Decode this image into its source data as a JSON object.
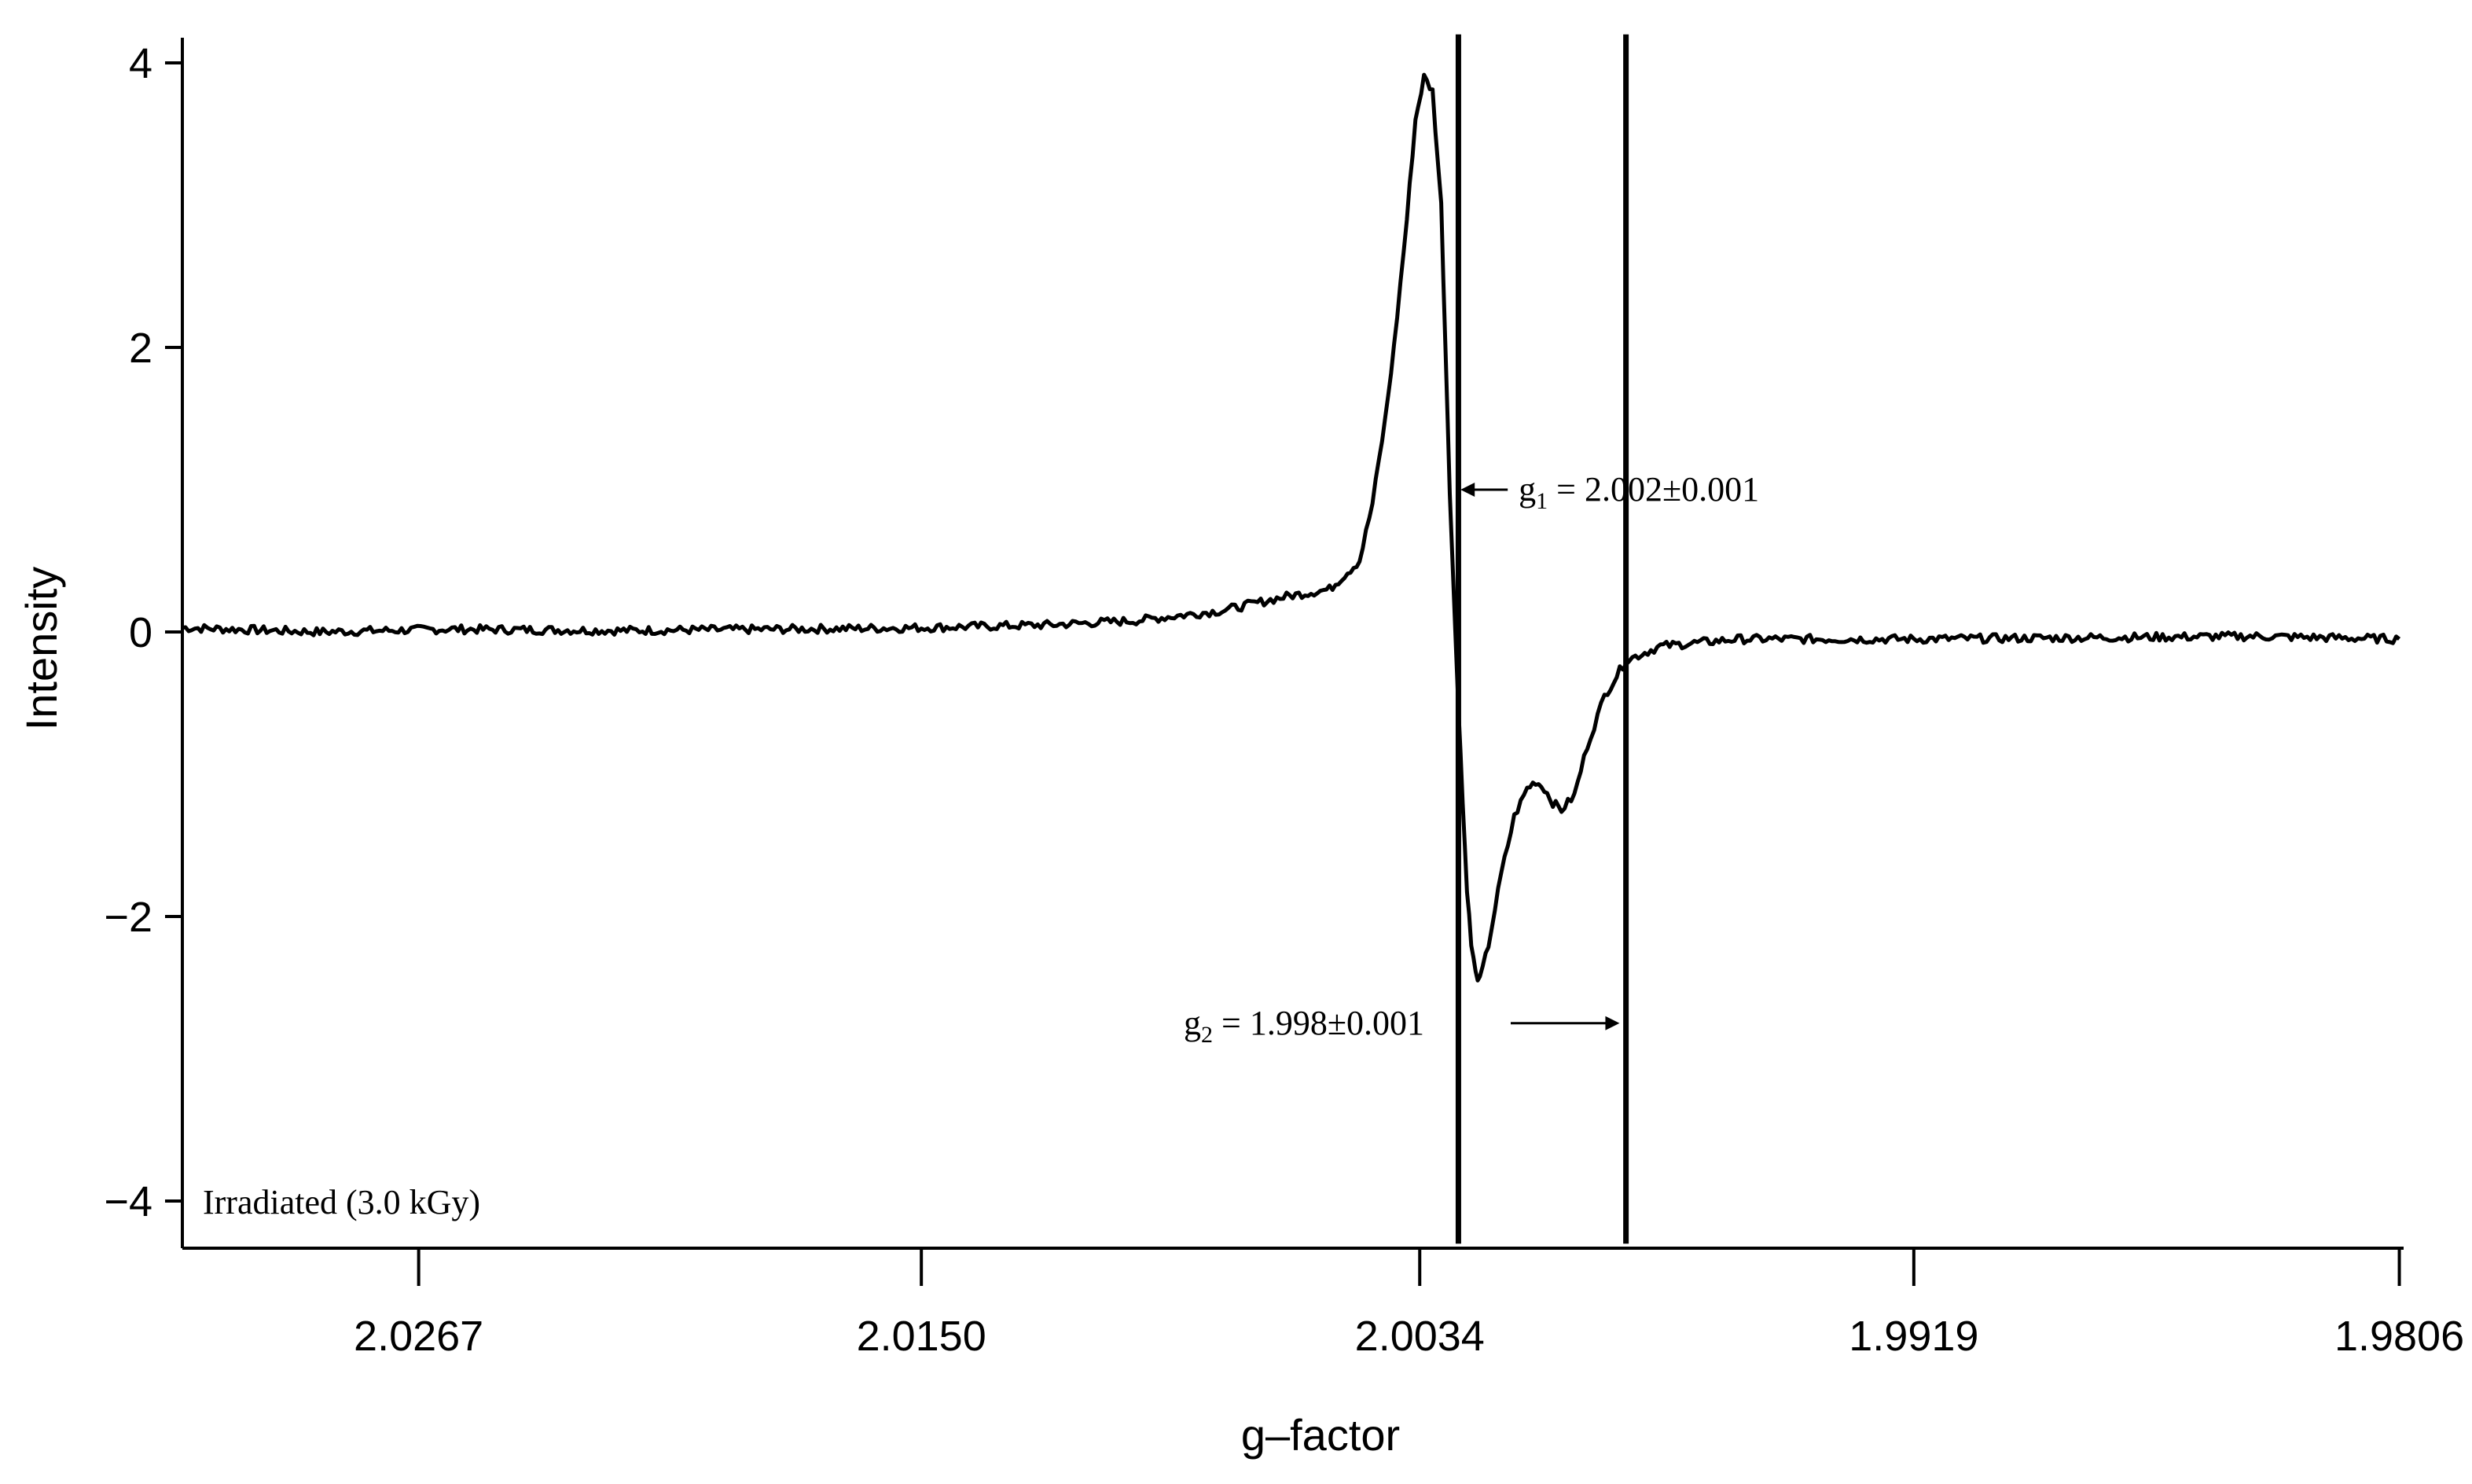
{
  "chart_data": {
    "type": "line",
    "xlabel": "g–factor",
    "ylabel": "Intensity",
    "x_axis": {
      "ticks": [
        2.0267,
        2.015,
        2.0034,
        1.9919,
        1.9806
      ],
      "tick_labels": [
        "2.0267",
        "2.0150",
        "2.0034",
        "1.9919",
        "1.9806"
      ],
      "range": [
        2.0322,
        1.9805
      ],
      "reversed": true
    },
    "y_axis": {
      "ticks": [
        -4,
        -2,
        0,
        2,
        4
      ],
      "tick_labels": [
        "−4",
        "−2",
        "0",
        "2",
        "4"
      ],
      "range": [
        -4.3,
        4.2
      ]
    },
    "grid": false,
    "legend": null,
    "series": [
      {
        "points": [
          [
            2.0322,
            0.03
          ],
          [
            2.029,
            0.0
          ],
          [
            2.026,
            0.02
          ],
          [
            2.022,
            0.01
          ],
          [
            2.018,
            0.02
          ],
          [
            2.015,
            0.03
          ],
          [
            2.012,
            0.05
          ],
          [
            2.01,
            0.08
          ],
          [
            2.008,
            0.15
          ],
          [
            2.0065,
            0.25
          ],
          [
            2.0055,
            0.3
          ],
          [
            2.0048,
            0.5
          ],
          [
            2.0045,
            0.9
          ],
          [
            2.0042,
            1.5
          ],
          [
            2.004,
            2.0
          ],
          [
            2.0037,
            2.9
          ],
          [
            2.0035,
            3.6
          ],
          [
            2.0033,
            3.9
          ],
          [
            2.0031,
            3.8
          ],
          [
            2.0029,
            3.0
          ],
          [
            2.0028,
            2.0
          ],
          [
            2.0027,
            1.0
          ],
          [
            2.0026,
            0.2
          ],
          [
            2.0025,
            -0.5
          ],
          [
            2.0024,
            -1.2
          ],
          [
            2.0023,
            -1.8
          ],
          [
            2.0022,
            -2.2
          ],
          [
            2.0021,
            -2.4
          ],
          [
            2.002,
            -2.45
          ],
          [
            2.0018,
            -2.2
          ],
          [
            2.0015,
            -1.7
          ],
          [
            2.0012,
            -1.3
          ],
          [
            2.0009,
            -1.1
          ],
          [
            2.0007,
            -1.05
          ],
          [
            2.0005,
            -1.1
          ],
          [
            2.0003,
            -1.2
          ],
          [
            2.0001,
            -1.25
          ],
          [
            1.9998,
            -1.15
          ],
          [
            1.9995,
            -0.8
          ],
          [
            1.9991,
            -0.45
          ],
          [
            1.9986,
            -0.2
          ],
          [
            1.9978,
            -0.1
          ],
          [
            1.996,
            -0.05
          ],
          [
            1.9919,
            -0.05
          ],
          [
            1.988,
            -0.04
          ],
          [
            1.984,
            -0.03
          ],
          [
            1.9806,
            -0.05
          ]
        ]
      }
    ],
    "spikes": [
      {
        "x": 2.0025,
        "y_min": -4.3,
        "y_max": 4.2
      },
      {
        "x": 1.9986,
        "y_min": -4.3,
        "y_max": 4.2
      }
    ],
    "annotations": [
      {
        "label": "g",
        "sub": "1",
        "rest": " = 2.002±0.001",
        "x": 2.0022,
        "y": 1.0,
        "arrow": "left"
      },
      {
        "label": "g",
        "sub": "2",
        "rest": " = 1.998±0.001",
        "x": 2.0052,
        "y": -2.75,
        "arrow": "right"
      }
    ],
    "inset_label": "Irradiated (3.0 kGy)"
  }
}
